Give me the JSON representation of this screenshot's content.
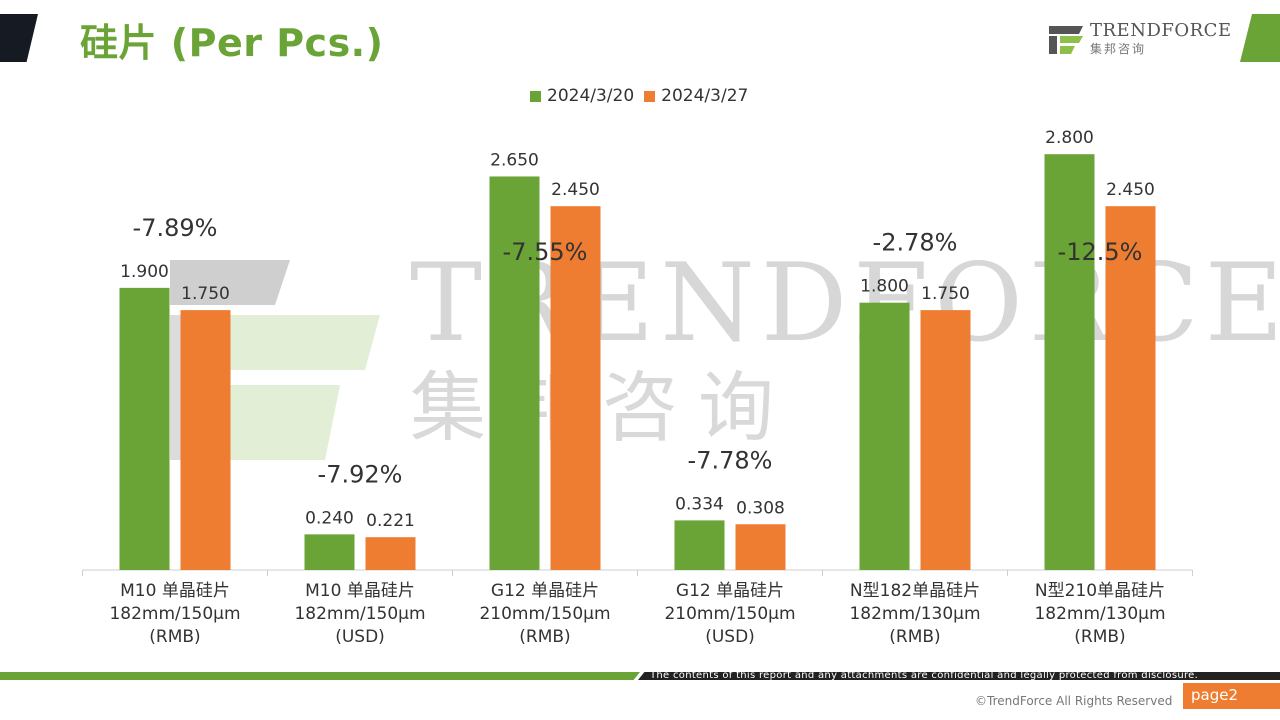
{
  "slide": {
    "title": "硅片 (Per Pcs.)",
    "logo_en": "TrendForce",
    "logo_cn": "集邦咨询",
    "watermark_en": "TRENDFORCE",
    "watermark_cn": "集邦咨询",
    "disclaimer": "The contents of this report and any attachments are confidential and legally protected from disclosure.",
    "copyright": "©TrendForce All Rights Reserved",
    "page": "page2"
  },
  "colors": {
    "green": "#6aa336",
    "orange": "#ee7d31",
    "dark": "#161a22"
  },
  "chart_data": {
    "type": "bar",
    "title": "",
    "categories": [
      [
        "M10 单晶硅片",
        "182mm/150μm",
        "(RMB)"
      ],
      [
        "M10 单晶硅片",
        "182mm/150μm",
        "(USD)"
      ],
      [
        "G12 单晶硅片",
        "210mm/150μm",
        "(RMB)"
      ],
      [
        "G12 单晶硅片",
        "210mm/150μm",
        "(USD)"
      ],
      [
        "N型182单晶硅片",
        "182mm/130μm",
        "(RMB)"
      ],
      [
        "N型210单晶硅片",
        "182mm/130μm",
        "(RMB)"
      ]
    ],
    "series": [
      {
        "name": "2024/3/20",
        "values": [
          1.9,
          0.24,
          2.65,
          0.334,
          1.8,
          2.8
        ],
        "labels": [
          "1.900",
          "0.240",
          "2.650",
          "0.334",
          "1.800",
          "2.800"
        ]
      },
      {
        "name": "2024/3/27",
        "values": [
          1.75,
          0.221,
          2.45,
          0.308,
          1.75,
          2.45
        ],
        "labels": [
          "1.750",
          "0.221",
          "2.450",
          "0.308",
          "1.750",
          "2.450"
        ]
      }
    ],
    "annotations": [
      "-7.89%",
      "-7.92%",
      "-7.55%",
      "-7.78%",
      "-2.78%",
      "-12.5%"
    ],
    "legend_position": "top-center",
    "grid": false
  }
}
